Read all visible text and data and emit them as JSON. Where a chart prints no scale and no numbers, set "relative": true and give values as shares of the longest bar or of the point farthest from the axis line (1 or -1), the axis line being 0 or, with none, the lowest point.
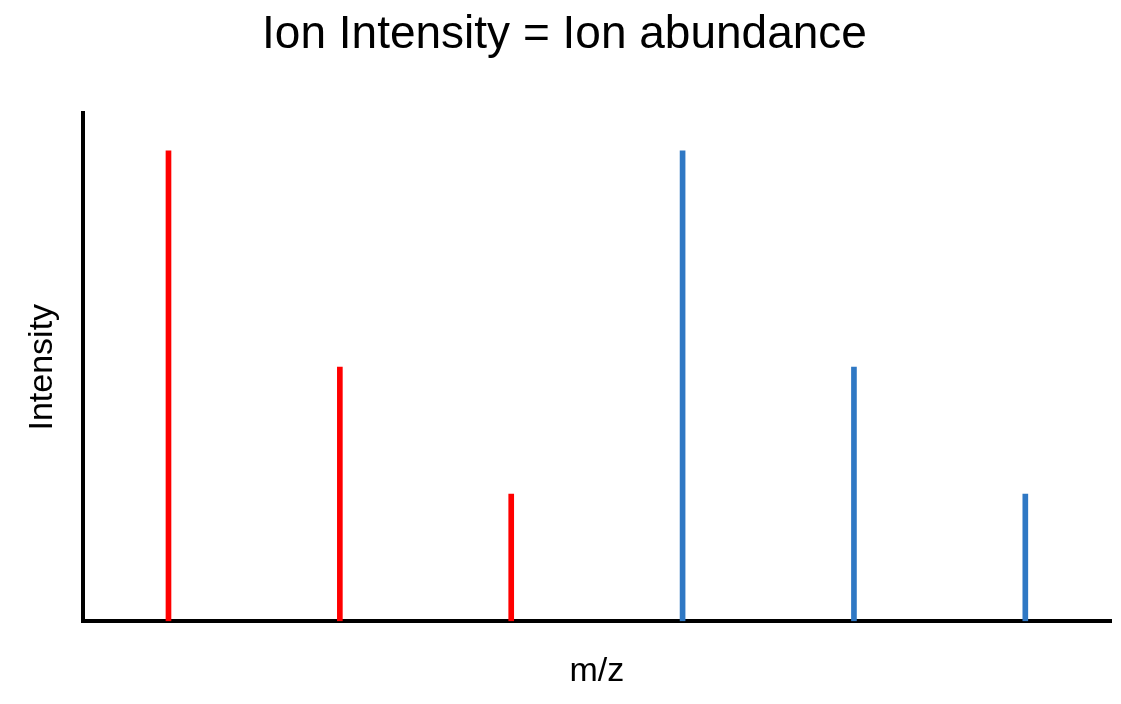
{
  "chart_data": {
    "type": "bar",
    "title": "Ion Intensity = Ion abundance",
    "xlabel": "m/z",
    "ylabel": "Intensity",
    "relative": true,
    "grid": false,
    "legend": false,
    "categories": [
      null,
      null,
      null,
      null,
      null,
      null
    ],
    "values": [
      1,
      0.54,
      0.27,
      1,
      0.54,
      0.27
    ],
    "colors": [
      "#ff0000",
      "#ff0000",
      "#ff0000",
      "#2f78c4",
      "#2f78c4",
      "#2f78c4"
    ]
  }
}
